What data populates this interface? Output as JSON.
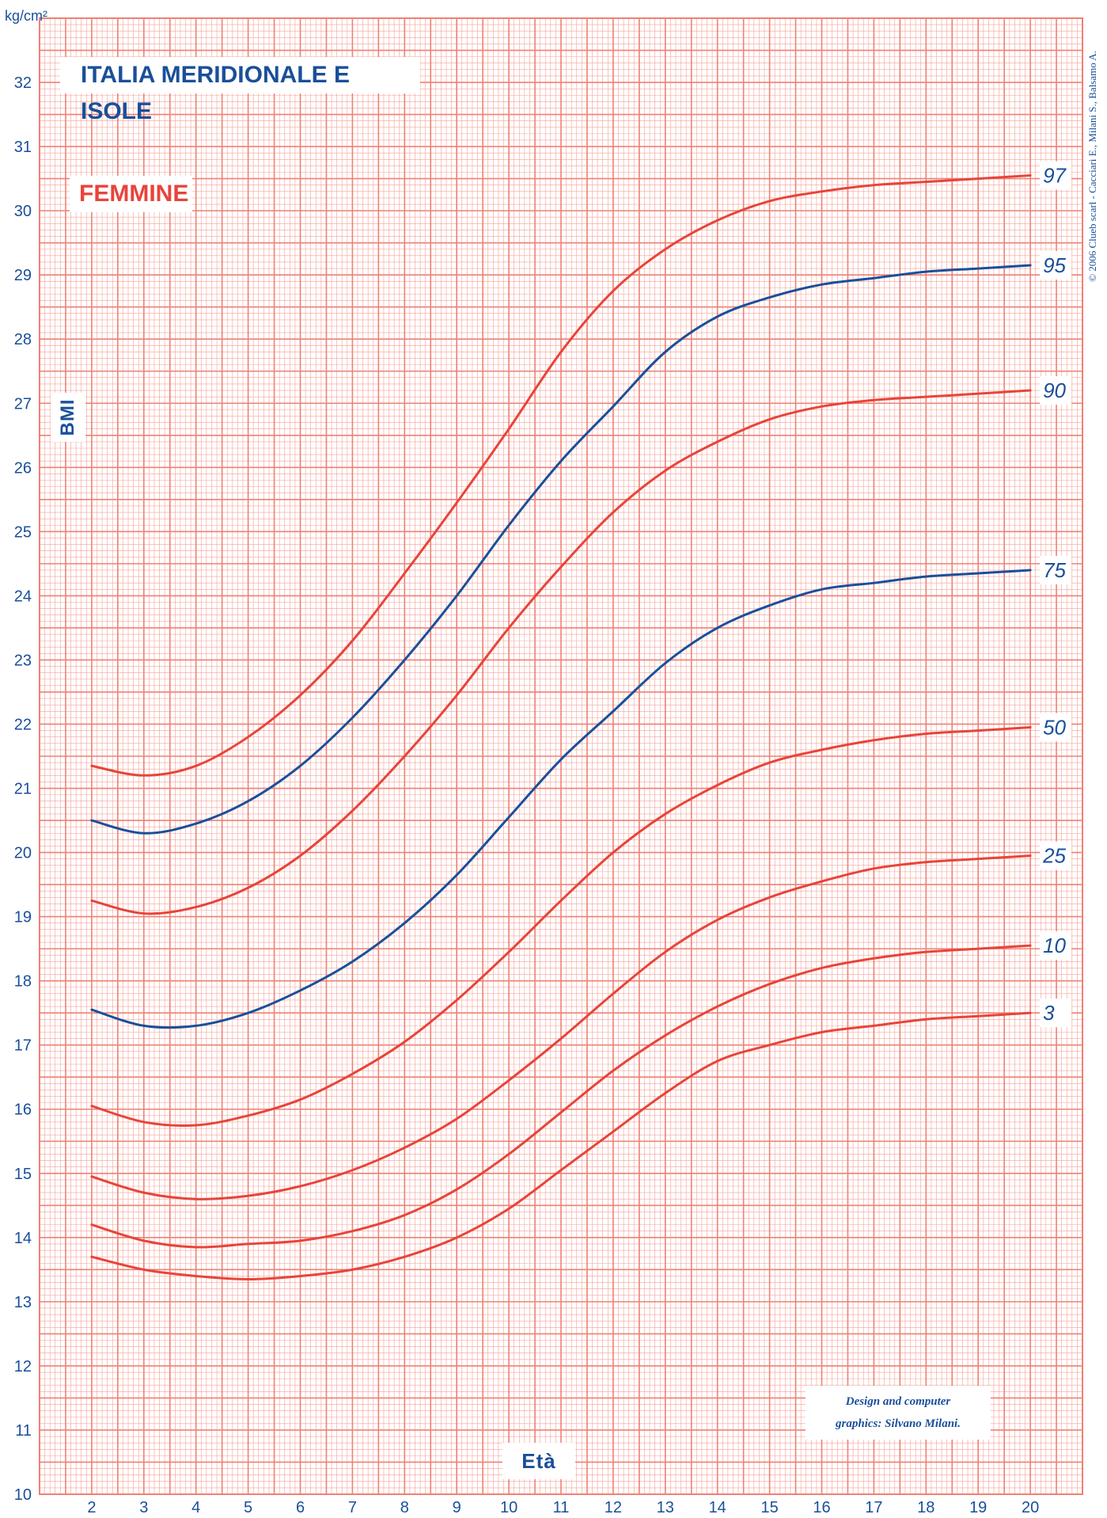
{
  "header": {
    "unit": "kg/cm²",
    "title": "ITALIA MERIDIONALE E ISOLE",
    "subtitle": "FEMMINE",
    "ylabel": "BMI",
    "xlabel": "Età",
    "credit_line1": "Design and computer",
    "credit_line2": "graphics: Silvano Milani.",
    "copyright": "© 2006 Clueb scarl - Cacciari E., Milani S., Balsamo A."
  },
  "colors": {
    "grid": "#f08074",
    "red_curve": "#e8443a",
    "blue_curve": "#1a4f9a",
    "text": "#1a4f9a"
  },
  "chart_data": {
    "type": "line",
    "title": "ITALIA MERIDIONALE E ISOLE",
    "subtitle": "FEMMINE",
    "xlabel": "Età",
    "ylabel": "BMI",
    "yunit": "kg/cm²",
    "xlim": [
      1,
      21
    ],
    "ylim": [
      10,
      33
    ],
    "xticks": [
      2,
      3,
      4,
      5,
      6,
      7,
      8,
      9,
      10,
      11,
      12,
      13,
      14,
      15,
      16,
      17,
      18,
      19,
      20
    ],
    "yticks": [
      10,
      11,
      12,
      13,
      14,
      15,
      16,
      17,
      18,
      19,
      20,
      21,
      22,
      23,
      24,
      25,
      26,
      27,
      28,
      29,
      30,
      31,
      32
    ],
    "grid": true,
    "x": [
      2,
      3,
      4,
      5,
      6,
      7,
      8,
      9,
      10,
      11,
      12,
      13,
      14,
      15,
      16,
      17,
      18,
      19,
      20
    ],
    "series": [
      {
        "name": "97",
        "color": "#e8443a",
        "values": [
          21.35,
          21.2,
          21.35,
          21.8,
          22.45,
          23.3,
          24.35,
          25.45,
          26.6,
          27.8,
          28.75,
          29.4,
          29.85,
          30.15,
          30.3,
          30.4,
          30.45,
          30.5,
          30.55
        ]
      },
      {
        "name": "95",
        "color": "#1a4f9a",
        "values": [
          20.5,
          20.3,
          20.45,
          20.8,
          21.35,
          22.1,
          23.0,
          24.0,
          25.1,
          26.1,
          26.95,
          27.8,
          28.35,
          28.65,
          28.85,
          28.95,
          29.05,
          29.1,
          29.15
        ]
      },
      {
        "name": "90",
        "color": "#e8443a",
        "values": [
          19.25,
          19.05,
          19.15,
          19.45,
          19.95,
          20.65,
          21.5,
          22.45,
          23.5,
          24.45,
          25.3,
          25.95,
          26.4,
          26.75,
          26.95,
          27.05,
          27.1,
          27.15,
          27.2
        ]
      },
      {
        "name": "75",
        "color": "#1a4f9a",
        "values": [
          17.55,
          17.3,
          17.3,
          17.5,
          17.85,
          18.3,
          18.9,
          19.65,
          20.55,
          21.45,
          22.2,
          22.95,
          23.5,
          23.85,
          24.1,
          24.2,
          24.3,
          24.35,
          24.4
        ]
      },
      {
        "name": "50",
        "color": "#e8443a",
        "values": [
          16.05,
          15.8,
          15.75,
          15.9,
          16.15,
          16.55,
          17.05,
          17.7,
          18.45,
          19.25,
          20.0,
          20.6,
          21.05,
          21.4,
          21.6,
          21.75,
          21.85,
          21.9,
          21.95
        ]
      },
      {
        "name": "25",
        "color": "#e8443a",
        "values": [
          14.95,
          14.7,
          14.6,
          14.65,
          14.8,
          15.05,
          15.4,
          15.85,
          16.45,
          17.1,
          17.8,
          18.45,
          18.95,
          19.3,
          19.55,
          19.75,
          19.85,
          19.9,
          19.95
        ]
      },
      {
        "name": "10",
        "color": "#e8443a",
        "values": [
          14.2,
          13.95,
          13.85,
          13.9,
          13.95,
          14.1,
          14.35,
          14.75,
          15.3,
          15.95,
          16.6,
          17.15,
          17.6,
          17.95,
          18.2,
          18.35,
          18.45,
          18.5,
          18.55
        ]
      },
      {
        "name": "3",
        "color": "#e8443a",
        "values": [
          13.7,
          13.5,
          13.4,
          13.35,
          13.4,
          13.5,
          13.7,
          14.0,
          14.45,
          15.05,
          15.65,
          16.25,
          16.75,
          17.0,
          17.2,
          17.3,
          17.4,
          17.45,
          17.5
        ]
      }
    ]
  }
}
